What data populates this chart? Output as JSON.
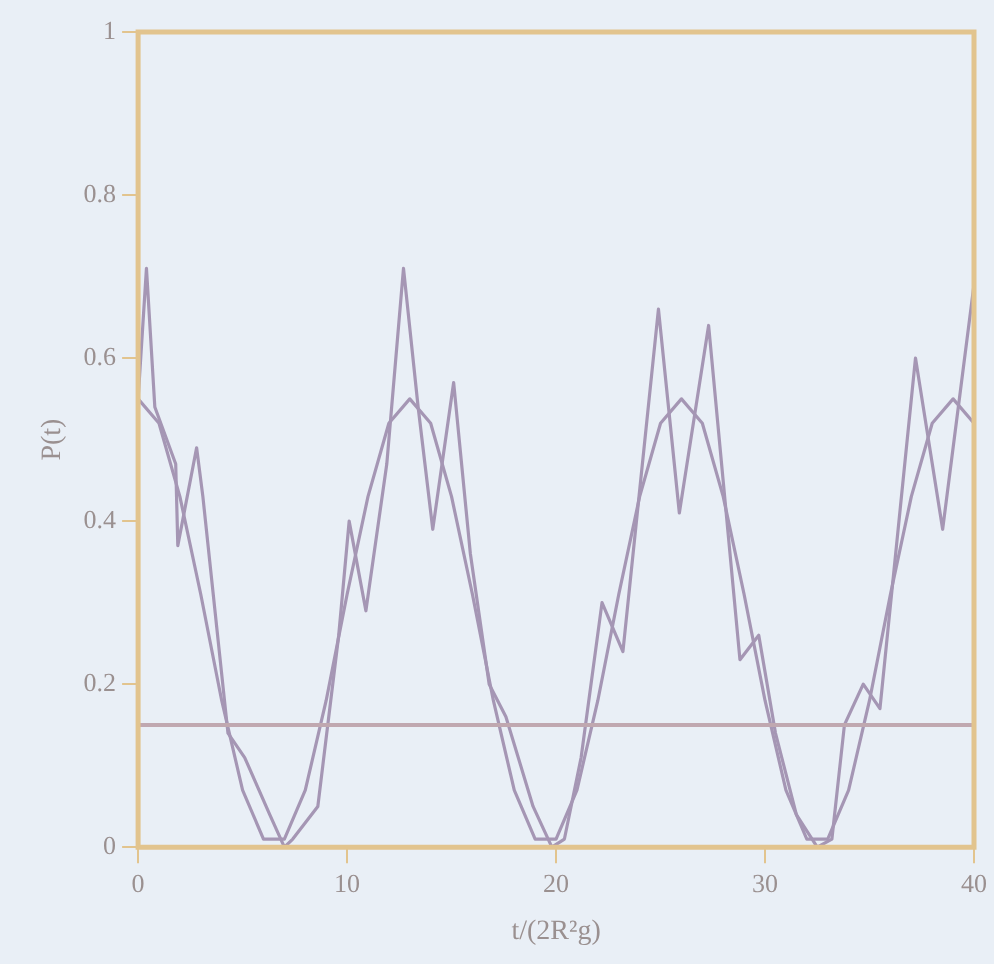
{
  "chart_data": {
    "type": "line",
    "xlabel": "t/(2R²g)",
    "ylabel": "P(t)",
    "xlim": [
      0,
      40
    ],
    "xticks": [
      0,
      10,
      20,
      30,
      40
    ],
    "ylim": [
      0,
      1
    ],
    "yticks": [
      0,
      0.2,
      0.4,
      0.6,
      0.8,
      1
    ],
    "grid": false,
    "legend": false,
    "marker": "none",
    "line_style": "solid",
    "series": [
      {
        "color": "#a596b4",
        "x": [
          0,
          1,
          2,
          3,
          4,
          5,
          6,
          7,
          8,
          9,
          10,
          11,
          12,
          13,
          14,
          15,
          16,
          17,
          18,
          19,
          20,
          21,
          22,
          23,
          24,
          25,
          26,
          27,
          28,
          29,
          30,
          31,
          32,
          33,
          34,
          35,
          36,
          37,
          38,
          39,
          40
        ],
        "values": [
          0.55,
          0.52,
          0.43,
          0.31,
          0.18,
          0.07,
          0.01,
          0.01,
          0.07,
          0.18,
          0.31,
          0.43,
          0.52,
          0.55,
          0.52,
          0.43,
          0.31,
          0.18,
          0.07,
          0.01,
          0.01,
          0.07,
          0.18,
          0.31,
          0.43,
          0.52,
          0.55,
          0.52,
          0.43,
          0.31,
          0.18,
          0.07,
          0.01,
          0.01,
          0.07,
          0.18,
          0.31,
          0.43,
          0.52,
          0.55,
          0.52
        ]
      },
      {
        "color": "#a596b4",
        "x": [
          0,
          0.4,
          0.8,
          1.8,
          1.9,
          2.8,
          3.1,
          4.3,
          5.1,
          6.3,
          7,
          7.4,
          8.6,
          9.6,
          10.1,
          10.9,
          11.9,
          12.7,
          13.4,
          14.1,
          15.1,
          15.9,
          16.8,
          17.6,
          18.9,
          19.8,
          20.4,
          21.2,
          22.2,
          23.2,
          24.9,
          25.9,
          27.3,
          28.8,
          29.7,
          30.5,
          31.5,
          32.5,
          33.2,
          33.8,
          34.7,
          35.5,
          37.2,
          38.5,
          40
        ],
        "values": [
          0.55,
          0.71,
          0.54,
          0.47,
          0.37,
          0.49,
          0.43,
          0.14,
          0.11,
          0.04,
          0,
          0.01,
          0.05,
          0.26,
          0.4,
          0.29,
          0.47,
          0.71,
          0.54,
          0.39,
          0.57,
          0.36,
          0.2,
          0.16,
          0.05,
          0,
          0.01,
          0.11,
          0.3,
          0.24,
          0.66,
          0.41,
          0.64,
          0.23,
          0.26,
          0.14,
          0.04,
          0,
          0.01,
          0.15,
          0.2,
          0.17,
          0.6,
          0.39,
          0.69
        ]
      }
    ],
    "ref_lines": [
      {
        "axis": "y",
        "value": 0.15,
        "color": "#c0a8b0"
      }
    ]
  }
}
